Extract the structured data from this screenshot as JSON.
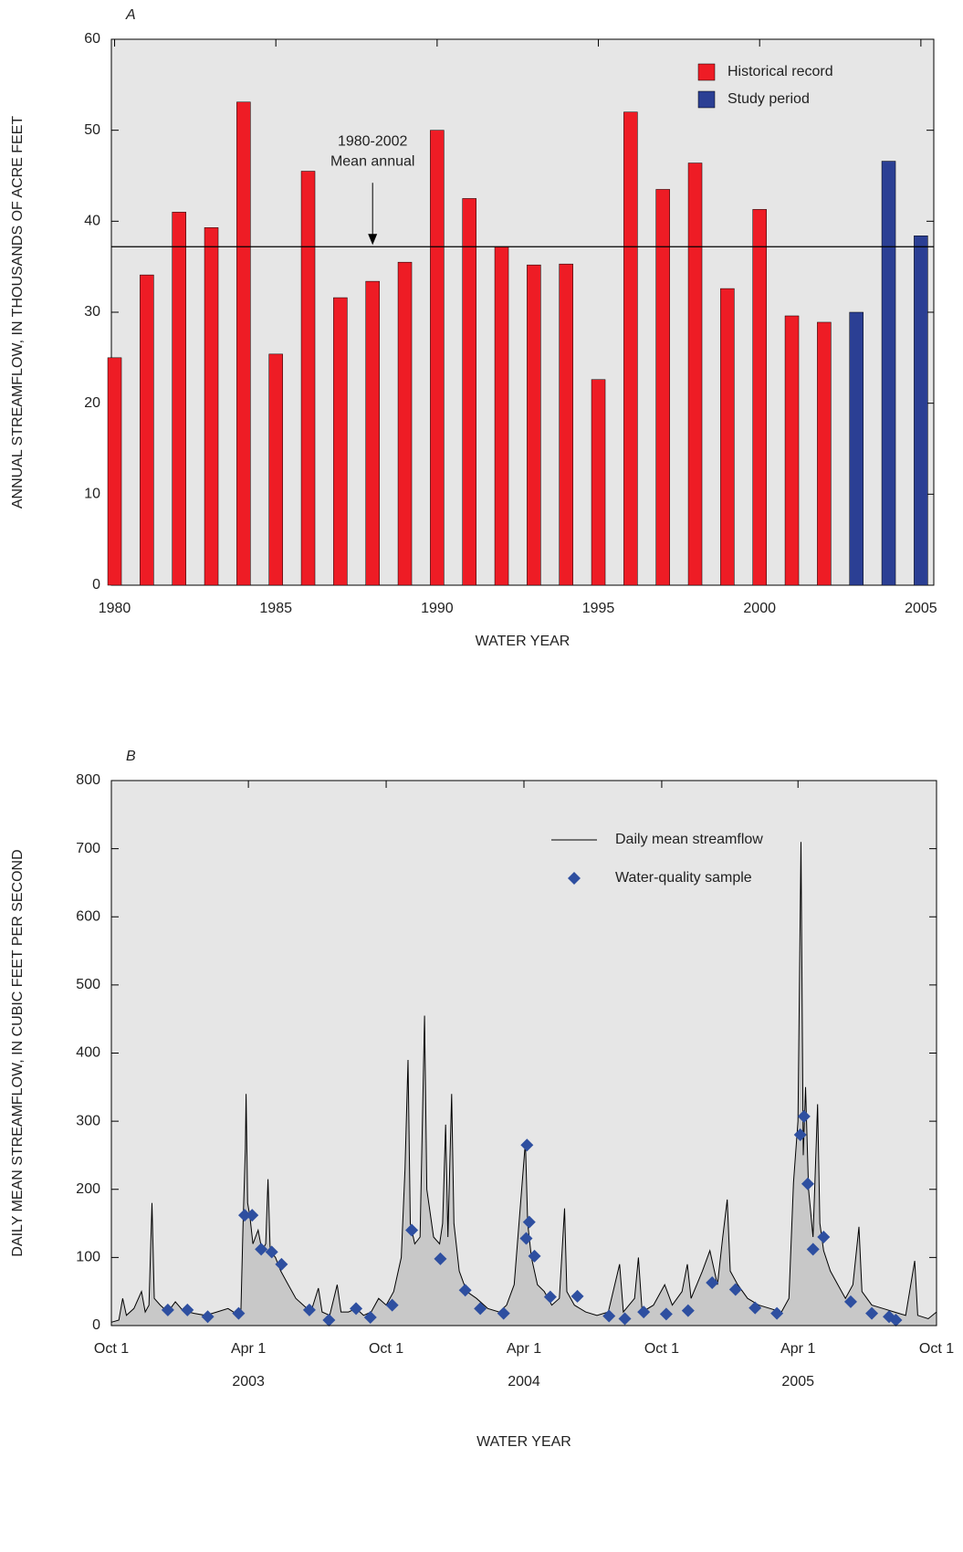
{
  "chart_data": [
    {
      "type": "bar",
      "panel": "A",
      "xlabel": "WATER YEAR",
      "ylabel": "ANNUAL STREAMFLOW, IN THOUSANDS OF ACRE FEET",
      "x": [
        1980,
        1981,
        1982,
        1983,
        1984,
        1985,
        1986,
        1987,
        1988,
        1989,
        1990,
        1991,
        1992,
        1993,
        1994,
        1995,
        1996,
        1997,
        1998,
        1999,
        2000,
        2001,
        2002,
        2003,
        2004,
        2005
      ],
      "series": [
        {
          "name": "Historical record",
          "color": "#ee1c25",
          "values": [
            25,
            34.1,
            41,
            39.3,
            53.1,
            25.4,
            45.5,
            31.6,
            33.4,
            35.5,
            50,
            42.5,
            37.2,
            35.2,
            35.3,
            22.6,
            52,
            43.5,
            46.4,
            32.6,
            41.3,
            29.6,
            28.9,
            null,
            null,
            null
          ]
        },
        {
          "name": "Study period",
          "color": "#2b3f94",
          "values": [
            null,
            null,
            null,
            null,
            null,
            null,
            null,
            null,
            null,
            null,
            null,
            null,
            null,
            null,
            null,
            null,
            null,
            null,
            null,
            null,
            null,
            null,
            null,
            30,
            46.6,
            38.4
          ]
        }
      ],
      "mean_line": {
        "value": 37.2,
        "x": 1988,
        "label": [
          "1980-2002",
          "Mean annual"
        ]
      },
      "xlim": [
        1979.9,
        2005.4
      ],
      "xticks": [
        1980,
        1985,
        1990,
        1995,
        2000,
        2005
      ],
      "ylim": [
        0,
        60
      ],
      "yticks": [
        0,
        10,
        20,
        30,
        40,
        50,
        60
      ],
      "legend": "upper right"
    },
    {
      "type": "line",
      "panel": "B",
      "xlabel": "WATER YEAR",
      "ylabel": "DAILY MEAN STREAMFLOW, IN CUBIC FEET PER SECOND",
      "series": [
        {
          "name": "Daily mean streamflow",
          "color": "#000000",
          "fill": "#c8c8c8",
          "kind": "line",
          "x": [
            0,
            10,
            15,
            20,
            30,
            40,
            45,
            50,
            54,
            57,
            65,
            75,
            85,
            95,
            110,
            125,
            140,
            155,
            165,
            172,
            175,
            178,
            179,
            181,
            184,
            188,
            195,
            200,
            205,
            208,
            211,
            218,
            225,
            235,
            245,
            255,
            265,
            275,
            280,
            290,
            300,
            305,
            315,
            325,
            335,
            345,
            355,
            365,
            375,
            385,
            390,
            394,
            397,
            403,
            410,
            416,
            419,
            428,
            436,
            440,
            444,
            447,
            452,
            455,
            462,
            472,
            485,
            500,
            515,
            525,
            535,
            545,
            550,
            553,
            558,
            566,
            575,
            585,
            595,
            602,
            605,
            615,
            630,
            645,
            660,
            675,
            680,
            695,
            700,
            705,
            720,
            735,
            745,
            758,
            765,
            770,
            785,
            795,
            805,
            812,
            818,
            822,
            832,
            845,
            860,
            875,
            890,
            900,
            906,
            912,
            916,
            919,
            922,
            926,
            932,
            938,
            941,
            946,
            955,
            965,
            975,
            985,
            993,
            997,
            1010,
            1025,
            1040,
            1055,
            1067,
            1071,
            1085,
            1096
          ],
          "values": [
            5,
            8,
            40,
            15,
            25,
            50,
            20,
            30,
            180,
            40,
            30,
            20,
            35,
            22,
            18,
            15,
            20,
            25,
            18,
            20,
            150,
            260,
            340,
            180,
            160,
            120,
            140,
            110,
            120,
            215,
            110,
            100,
            80,
            60,
            40,
            30,
            20,
            55,
            20,
            15,
            60,
            20,
            20,
            25,
            15,
            20,
            40,
            30,
            50,
            100,
            230,
            390,
            150,
            120,
            130,
            455,
            200,
            130,
            120,
            150,
            295,
            130,
            340,
            150,
            80,
            50,
            40,
            25,
            20,
            30,
            60,
            200,
            270,
            150,
            100,
            60,
            50,
            30,
            40,
            172,
            50,
            30,
            20,
            15,
            20,
            90,
            20,
            40,
            100,
            20,
            30,
            60,
            30,
            50,
            90,
            40,
            80,
            110,
            60,
            130,
            185,
            80,
            60,
            40,
            30,
            25,
            20,
            40,
            210,
            300,
            710,
            250,
            350,
            200,
            130,
            325,
            150,
            110,
            80,
            60,
            40,
            60,
            145,
            50,
            30,
            25,
            20,
            15,
            95,
            15,
            10,
            20
          ]
        },
        {
          "name": "Water-quality sample",
          "color": "#2e4fa0",
          "kind": "scatter",
          "x": [
            75,
            101,
            128,
            169,
            177,
            187,
            199,
            213,
            226,
            263,
            289,
            325,
            344,
            373,
            399,
            437,
            470,
            490,
            521,
            551,
            552,
            555,
            562,
            583,
            619,
            661,
            682,
            707,
            737,
            766,
            798,
            829,
            855,
            884,
            915,
            920,
            925,
            932,
            946,
            982,
            1010,
            1033,
            1042
          ],
          "values": [
            23,
            23,
            13,
            18,
            162,
            162,
            112,
            108,
            90,
            23,
            8,
            25,
            12,
            30,
            140,
            98,
            52,
            25,
            18,
            128,
            265,
            152,
            102,
            42,
            43,
            14,
            10,
            20,
            17,
            22,
            63,
            53,
            26,
            18,
            280,
            307,
            208,
            112,
            130,
            35,
            18,
            13,
            8
          ]
        }
      ],
      "xlim": [
        0,
        1096
      ],
      "xticks": [
        {
          "value": 0,
          "label": "Oct 1"
        },
        {
          "value": 182,
          "label": "Apr 1"
        },
        {
          "value": 365,
          "label": "Oct 1"
        },
        {
          "value": 548,
          "label": "Apr 1"
        },
        {
          "value": 731,
          "label": "Oct 1"
        },
        {
          "value": 912,
          "label": "Apr 1"
        },
        {
          "value": 1096,
          "label": "Oct 1"
        }
      ],
      "year_labels": [
        {
          "value": 182,
          "label": "2003"
        },
        {
          "value": 548,
          "label": "2004"
        },
        {
          "value": 912,
          "label": "2005"
        }
      ],
      "ylim": [
        0,
        800
      ],
      "yticks": [
        0,
        100,
        200,
        300,
        400,
        500,
        600,
        700,
        800
      ],
      "legend": "upper right"
    }
  ]
}
